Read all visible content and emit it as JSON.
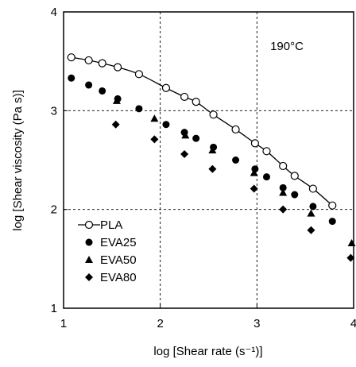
{
  "chart_data": {
    "type": "scatter",
    "xlabel": "log [Shear rate (s⁻¹)]",
    "ylabel": "log [Shear viscosity (Pa s)]",
    "xlim": [
      1,
      4
    ],
    "ylim": [
      1,
      4
    ],
    "xticks": [
      "1",
      "2",
      "3",
      "4"
    ],
    "yticks": [
      "1",
      "2",
      "3",
      "4"
    ],
    "grid": "dashed at 2 and 3",
    "legend_position": "bottom-left",
    "annotation": "190°C",
    "series": [
      {
        "name": "PLA",
        "marker": "open-circle",
        "fit_line": true,
        "x": [
          1.08,
          1.26,
          1.4,
          1.56,
          1.78,
          2.06,
          2.25,
          2.37,
          2.55,
          2.78,
          2.98,
          3.1,
          3.27,
          3.39,
          3.58,
          3.78
        ],
        "y": [
          3.54,
          3.51,
          3.48,
          3.44,
          3.37,
          3.23,
          3.14,
          3.09,
          2.96,
          2.81,
          2.67,
          2.59,
          2.44,
          2.34,
          2.21,
          2.04
        ]
      },
      {
        "name": "EVA25",
        "marker": "filled-circle",
        "x": [
          1.08,
          1.26,
          1.4,
          1.56,
          1.78,
          2.06,
          2.25,
          2.37,
          2.55,
          2.78,
          2.98,
          3.1,
          3.27,
          3.39,
          3.58,
          3.78
        ],
        "y": [
          3.33,
          3.26,
          3.2,
          3.12,
          3.02,
          2.86,
          2.78,
          2.72,
          2.63,
          2.5,
          2.41,
          2.33,
          2.22,
          2.15,
          2.03,
          1.88
        ]
      },
      {
        "name": "EVA50",
        "marker": "filled-triangle",
        "x": [
          1.55,
          1.94,
          2.26,
          2.54,
          2.97,
          3.27,
          3.56,
          3.98
        ],
        "y": [
          3.1,
          2.92,
          2.75,
          2.6,
          2.37,
          2.17,
          1.96,
          1.66
        ]
      },
      {
        "name": "EVA80",
        "marker": "filled-diamond",
        "x": [
          1.54,
          1.94,
          2.25,
          2.54,
          2.97,
          3.27,
          3.56,
          3.97
        ],
        "y": [
          2.86,
          2.71,
          2.56,
          2.41,
          2.21,
          2.0,
          1.79,
          1.51
        ]
      }
    ]
  }
}
